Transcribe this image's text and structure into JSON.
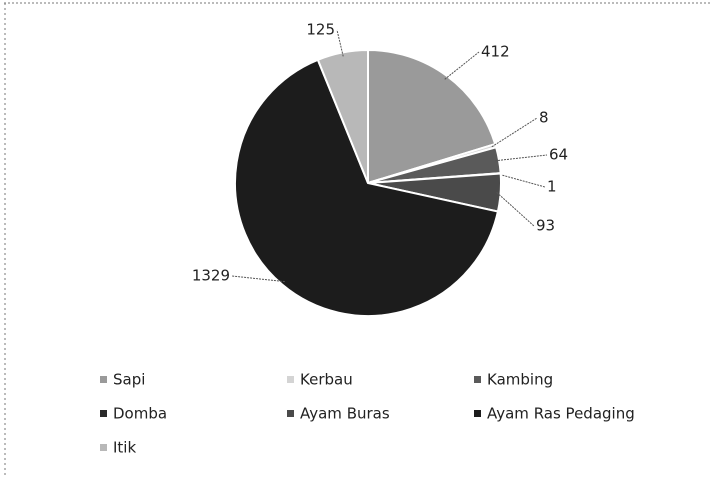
{
  "chart_data": {
    "type": "pie",
    "categories": [
      "Sapi",
      "Kerbau",
      "Kambing",
      "Domba",
      "Ayam Buras",
      "Ayam Ras Pedaging",
      "Itik"
    ],
    "values": [
      412,
      8,
      64,
      1,
      93,
      1329,
      125
    ],
    "colors": [
      "#9a9a9a",
      "#d4d4d4",
      "#5a5a5a",
      "#2a2a2a",
      "#4a4a4a",
      "#1c1c1c",
      "#b8b8b8"
    ],
    "legend": "bottom"
  }
}
